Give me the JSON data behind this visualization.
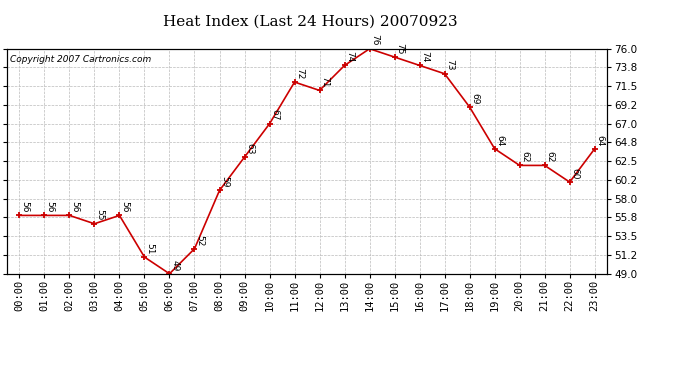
{
  "title": "Heat Index (Last 24 Hours) 20070923",
  "copyright": "Copyright 2007 Cartronics.com",
  "x_labels": [
    "00:00",
    "01:00",
    "02:00",
    "03:00",
    "04:00",
    "05:00",
    "06:00",
    "07:00",
    "08:00",
    "09:00",
    "10:00",
    "11:00",
    "12:00",
    "13:00",
    "14:00",
    "15:00",
    "16:00",
    "17:00",
    "18:00",
    "19:00",
    "20:00",
    "21:00",
    "22:00",
    "23:00"
  ],
  "x_indices": [
    0,
    1,
    2,
    3,
    4,
    5,
    6,
    7,
    8,
    9,
    10,
    11,
    12,
    13,
    14,
    15,
    16,
    17,
    18,
    19,
    20,
    21,
    22,
    23
  ],
  "data_values": [
    56,
    56,
    56,
    55,
    56,
    51,
    49,
    52,
    59,
    63,
    67,
    72,
    71,
    74,
    76,
    75,
    74,
    73,
    69,
    64,
    62,
    62,
    60,
    64
  ],
  "ylim": [
    49.0,
    76.0
  ],
  "yticks": [
    49.0,
    51.2,
    53.5,
    55.8,
    58.0,
    60.2,
    62.5,
    64.8,
    67.0,
    69.2,
    71.5,
    73.8,
    76.0
  ],
  "line_color": "#cc0000",
  "marker_color": "#cc0000",
  "bg_color": "#ffffff",
  "grid_color": "#bbbbbb",
  "title_fontsize": 11,
  "annotation_fontsize": 6.5,
  "copyright_fontsize": 6.5,
  "tick_fontsize": 7.5
}
